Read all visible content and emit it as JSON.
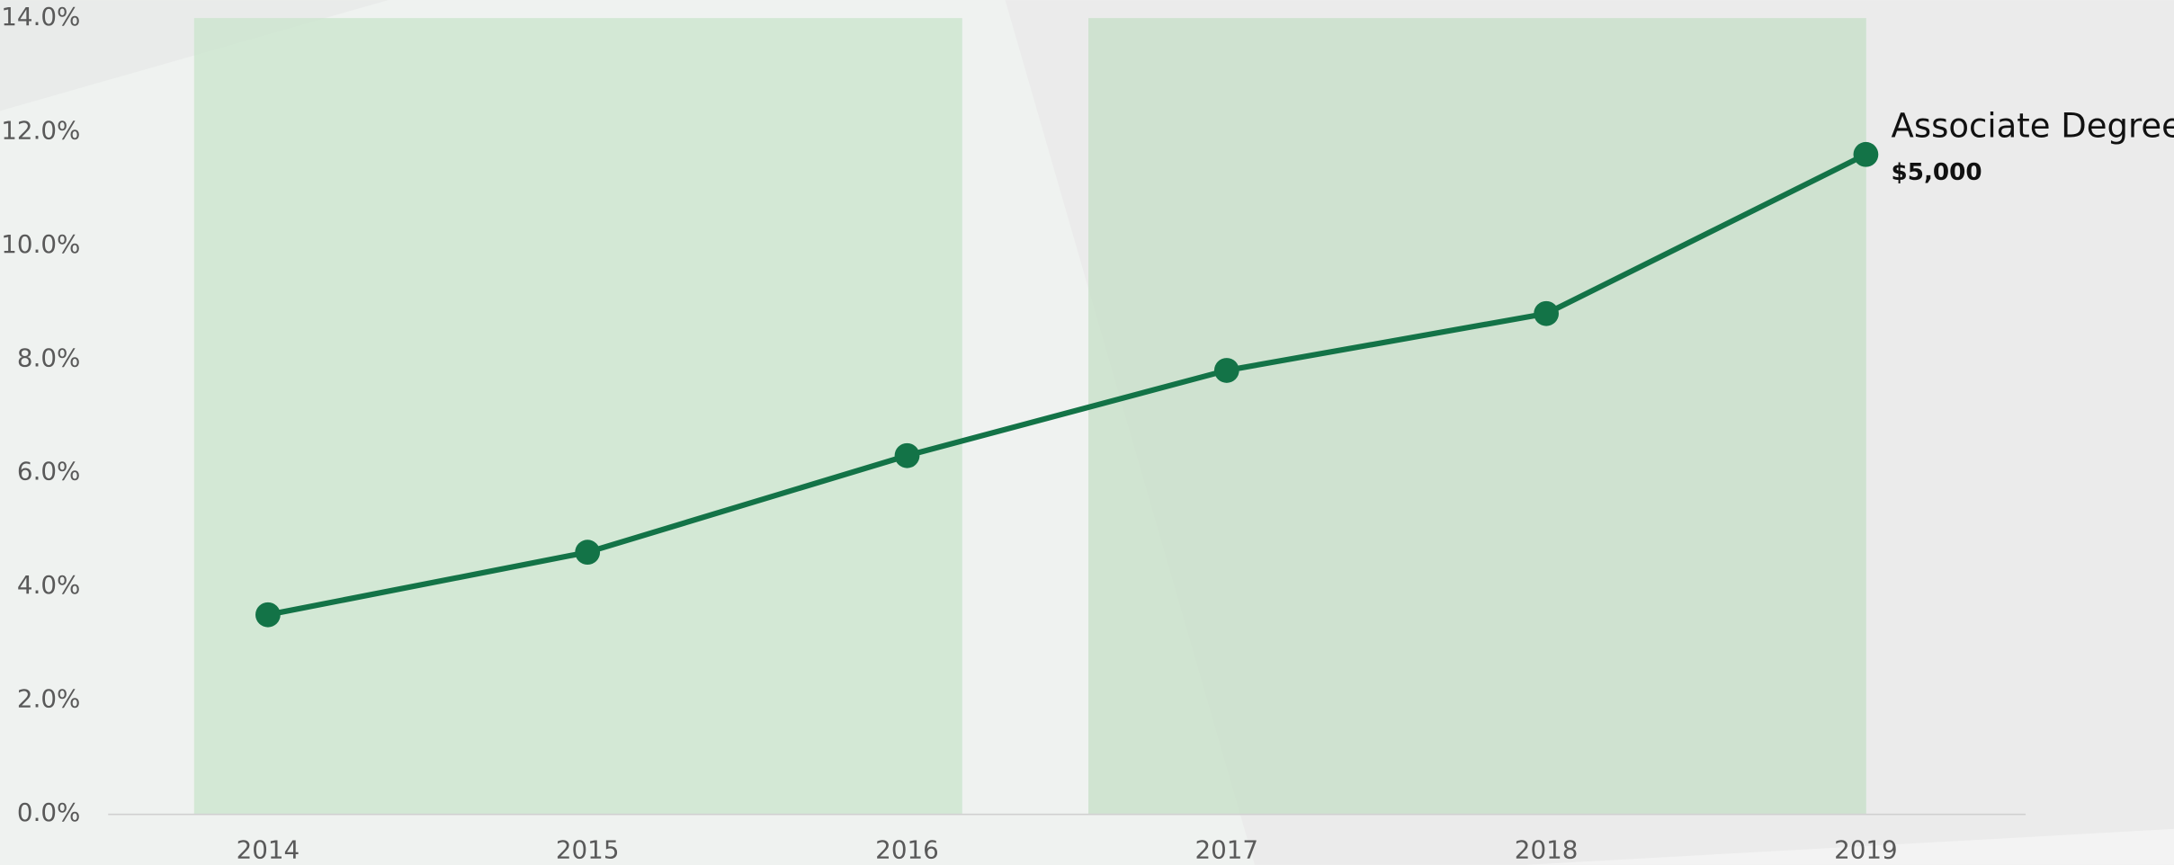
{
  "chart_data": {
    "type": "line",
    "categories": [
      "2014",
      "2015",
      "2016",
      "2017",
      "2018",
      "2019"
    ],
    "series": [
      {
        "name": "Associate Degree",
        "color": "#137347",
        "values": [
          3.5,
          4.6,
          6.3,
          7.8,
          8.8,
          11.6
        ]
      }
    ],
    "annotation": "$5,000",
    "ylim": [
      0,
      14
    ],
    "yticks": [
      {
        "value": 0,
        "label": "0.0%"
      },
      {
        "value": 2,
        "label": "2.0%"
      },
      {
        "value": 4,
        "label": "4.0%"
      },
      {
        "value": 6,
        "label": "6.0%"
      },
      {
        "value": 8,
        "label": "8.0%"
      },
      {
        "value": 10,
        "label": "10.0%"
      },
      {
        "value": 12,
        "label": "12.0%"
      },
      {
        "value": 14,
        "label": "14.0%"
      }
    ],
    "grid": false
  }
}
